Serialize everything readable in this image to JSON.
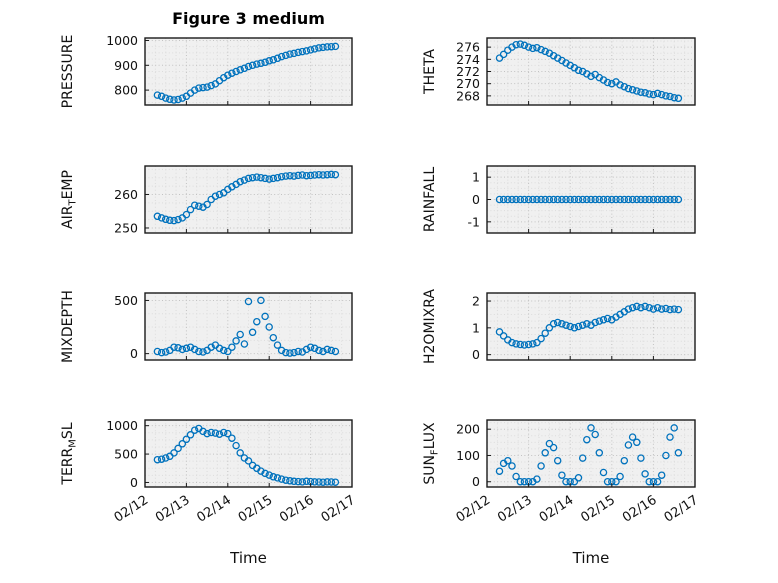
{
  "figure": {
    "title": "Figure 3 medium",
    "xlabel": "Time",
    "background": "#ffffff",
    "axes_background": "#f0f0f0",
    "marker_color": "#0072BD",
    "grid_minor_color": "#dcdcdc",
    "grid_major_color": "#c2c2c2",
    "xtick_labels": [
      "02/12",
      "02/13",
      "02/14",
      "02/15",
      "02/16",
      "02/17"
    ],
    "xtick_values": [
      0,
      1,
      2,
      3,
      4,
      5
    ],
    "xlim": [
      0,
      5
    ],
    "x_days": [
      0.3,
      0.4,
      0.5,
      0.6,
      0.7,
      0.8,
      0.9,
      1.0,
      1.1,
      1.2,
      1.3,
      1.4,
      1.5,
      1.6,
      1.7,
      1.8,
      1.9,
      2.0,
      2.1,
      2.2,
      2.3,
      2.4,
      2.5,
      2.6,
      2.7,
      2.8,
      2.9,
      3.0,
      3.1,
      3.2,
      3.3,
      3.4,
      3.5,
      3.6,
      3.7,
      3.8,
      3.9,
      4.0,
      4.1,
      4.2,
      4.3,
      4.4,
      4.5,
      4.6
    ]
  },
  "chart_data": [
    {
      "type": "scatter",
      "ylabel": "PRESSURE",
      "yticks": [
        800,
        900,
        1000
      ],
      "ylim": [
        740,
        1010
      ],
      "yminor_step": 25,
      "values": [
        780,
        775,
        768,
        763,
        760,
        762,
        768,
        775,
        788,
        800,
        808,
        810,
        812,
        818,
        825,
        838,
        850,
        860,
        868,
        875,
        882,
        888,
        895,
        900,
        905,
        908,
        912,
        918,
        922,
        928,
        935,
        940,
        945,
        948,
        952,
        955,
        958,
        962,
        966,
        970,
        972,
        974,
        975,
        976
      ]
    },
    {
      "type": "scatter",
      "ylabel": "THETA",
      "yticks": [
        268,
        270,
        272,
        274,
        276
      ],
      "ylim": [
        266.5,
        277.5
      ],
      "yminor_step": 1,
      "values": [
        274.2,
        274.8,
        275.5,
        276.0,
        276.4,
        276.5,
        276.3,
        276.0,
        275.8,
        275.9,
        275.6,
        275.3,
        275.0,
        274.6,
        274.2,
        273.8,
        273.4,
        273.0,
        272.6,
        272.2,
        272.0,
        271.6,
        271.2,
        271.5,
        271.0,
        270.6,
        270.2,
        270.0,
        270.3,
        269.8,
        269.5,
        269.2,
        269.0,
        268.8,
        268.6,
        268.5,
        268.3,
        268.2,
        268.4,
        268.2,
        268.0,
        267.9,
        267.7,
        267.6
      ]
    },
    {
      "type": "scatter",
      "ylabel": "AIR_TEMP",
      "yticks": [
        250,
        260
      ],
      "ylim": [
        248.5,
        268.5
      ],
      "yminor_step": 2.5,
      "values": [
        253.5,
        253.0,
        252.6,
        252.3,
        252.2,
        252.5,
        253.0,
        254.0,
        255.5,
        256.8,
        256.5,
        256.2,
        257.0,
        258.5,
        259.5,
        260.0,
        260.5,
        261.5,
        262.3,
        263.0,
        263.8,
        264.3,
        264.8,
        265.0,
        265.2,
        265.0,
        264.8,
        264.6,
        264.8,
        265.0,
        265.3,
        265.5,
        265.6,
        265.5,
        265.7,
        265.8,
        265.6,
        265.7,
        265.8,
        265.9,
        265.8,
        265.9,
        266.0,
        265.9
      ]
    },
    {
      "type": "scatter",
      "ylabel": "RAINFALL",
      "yticks": [
        -1,
        0,
        1
      ],
      "ylim": [
        -1.5,
        1.5
      ],
      "yminor_step": 0.25,
      "values": [
        0,
        0,
        0,
        0,
        0,
        0,
        0,
        0,
        0,
        0,
        0,
        0,
        0,
        0,
        0,
        0,
        0,
        0,
        0,
        0,
        0,
        0,
        0,
        0,
        0,
        0,
        0,
        0,
        0,
        0,
        0,
        0,
        0,
        0,
        0,
        0,
        0,
        0,
        0,
        0,
        0,
        0,
        0,
        0
      ]
    },
    {
      "type": "scatter",
      "ylabel": "MIXDEPTH",
      "yticks": [
        0,
        500
      ],
      "ylim": [
        -60,
        570
      ],
      "yminor_step": 125,
      "values": [
        20,
        10,
        15,
        30,
        60,
        55,
        40,
        50,
        60,
        40,
        20,
        15,
        30,
        60,
        80,
        50,
        30,
        20,
        60,
        120,
        180,
        90,
        490,
        200,
        300,
        500,
        350,
        250,
        150,
        80,
        30,
        10,
        5,
        10,
        20,
        15,
        40,
        60,
        50,
        30,
        20,
        40,
        30,
        20
      ]
    },
    {
      "type": "scatter",
      "ylabel": "H2OMIXRA",
      "yticks": [
        0,
        1,
        2
      ],
      "ylim": [
        -0.2,
        2.3
      ],
      "yminor_step": 0.25,
      "values": [
        0.85,
        0.7,
        0.55,
        0.45,
        0.4,
        0.38,
        0.36,
        0.38,
        0.4,
        0.45,
        0.6,
        0.8,
        1.0,
        1.15,
        1.2,
        1.15,
        1.1,
        1.05,
        1.0,
        1.05,
        1.1,
        1.15,
        1.1,
        1.2,
        1.25,
        1.3,
        1.35,
        1.3,
        1.4,
        1.5,
        1.6,
        1.7,
        1.75,
        1.8,
        1.75,
        1.8,
        1.75,
        1.7,
        1.75,
        1.7,
        1.72,
        1.68,
        1.7,
        1.68
      ]
    },
    {
      "type": "scatter",
      "ylabel": "TERR_MSL",
      "yticks": [
        0,
        500,
        1000
      ],
      "ylim": [
        -80,
        1100
      ],
      "yminor_step": 125,
      "values": [
        400,
        410,
        430,
        460,
        520,
        600,
        680,
        760,
        840,
        920,
        950,
        900,
        860,
        880,
        870,
        850,
        880,
        860,
        780,
        650,
        520,
        430,
        380,
        300,
        250,
        200,
        160,
        130,
        100,
        80,
        60,
        40,
        30,
        20,
        15,
        10,
        20,
        15,
        10,
        8,
        5,
        10,
        8,
        5
      ]
    },
    {
      "type": "scatter",
      "ylabel": "SUN_FLUX",
      "yticks": [
        0,
        100,
        200
      ],
      "ylim": [
        -20,
        235
      ],
      "yminor_step": 25,
      "values": [
        40,
        70,
        80,
        60,
        20,
        0,
        0,
        0,
        0,
        10,
        60,
        110,
        145,
        130,
        80,
        25,
        0,
        0,
        0,
        15,
        90,
        160,
        205,
        180,
        110,
        35,
        0,
        0,
        0,
        20,
        80,
        140,
        170,
        150,
        90,
        30,
        0,
        0,
        0,
        25,
        100,
        170,
        205,
        110
      ]
    }
  ]
}
